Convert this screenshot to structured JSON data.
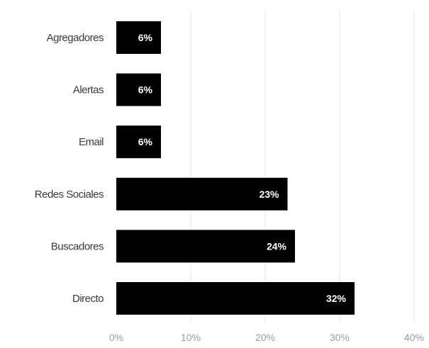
{
  "chart_data": {
    "type": "bar",
    "orientation": "horizontal",
    "categories": [
      "Agregadores",
      "Alertas",
      "Email",
      "Redes Sociales",
      "Buscadores",
      "Directo"
    ],
    "values": [
      6,
      6,
      6,
      23,
      24,
      32
    ],
    "data_labels": [
      "6%",
      "6%",
      "6%",
      "23%",
      "24%",
      "32%"
    ],
    "x_ticks": [
      0,
      10,
      20,
      30,
      40
    ],
    "x_tick_labels": [
      "0%",
      "10%",
      "20%",
      "30%",
      "40%"
    ],
    "xlim": [
      0,
      40
    ],
    "grid": true,
    "bar_color": "#000000",
    "title": "",
    "xlabel": "",
    "ylabel": ""
  }
}
